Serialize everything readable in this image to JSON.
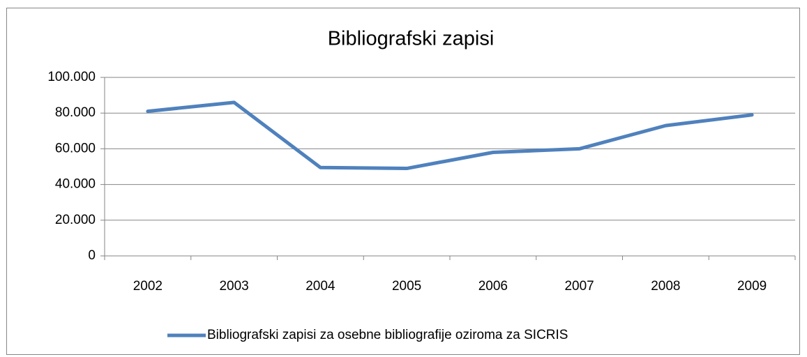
{
  "chart_data": {
    "type": "line",
    "title": "Bibliografski zapisi",
    "categories": [
      "2002",
      "2003",
      "2004",
      "2005",
      "2006",
      "2007",
      "2008",
      "2009"
    ],
    "series": [
      {
        "name": "Bibliografski zapisi za osebne bibliografije oziroma za SICRIS",
        "color": "#4f81bd",
        "values": [
          81000,
          86000,
          49500,
          49000,
          58000,
          60000,
          73000,
          79000
        ]
      }
    ],
    "ylim": [
      0,
      100000
    ],
    "yticks": [
      0,
      {
        "value": 20000,
        "label": "20.000"
      },
      {
        "value": 40000,
        "label": "40.000"
      },
      {
        "value": 60000,
        "label": "60.000"
      },
      {
        "value": 80000,
        "label": "80.000"
      },
      {
        "value": 100000,
        "label": "100.000"
      }
    ],
    "grid": true,
    "legend": "bottom"
  }
}
